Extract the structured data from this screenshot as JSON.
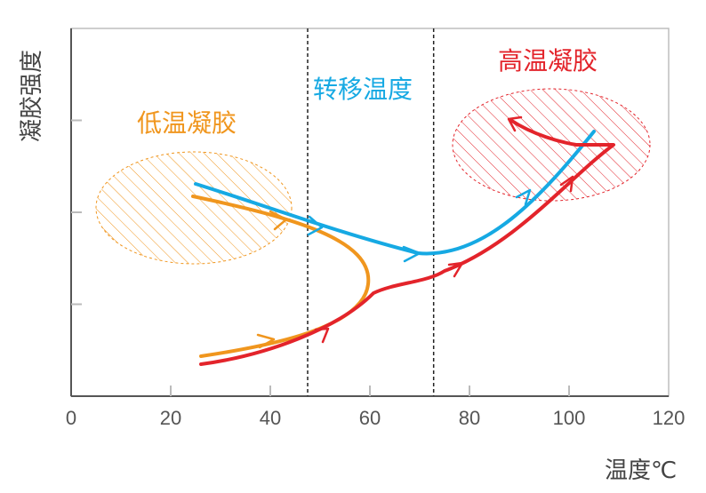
{
  "chart_data": {
    "type": "line",
    "title": "",
    "xlabel": "温度℃",
    "ylabel": "凝胶强度",
    "xlim": [
      0,
      120
    ],
    "xticks": [
      "0",
      "20",
      "40",
      "60",
      "80",
      "100",
      "120"
    ],
    "y_ticks_count": 3,
    "dividers_x": [
      47.5,
      72.8
    ],
    "regions": [
      {
        "name": "低温凝胶",
        "color": "#f0961e"
      },
      {
        "name": "转移温度",
        "color": "#16a9e3"
      },
      {
        "name": "高温凝胶",
        "color": "#e3242b"
      }
    ],
    "series_colors": [
      "#f0961e",
      "#16a9e3",
      "#e3242b"
    ]
  }
}
